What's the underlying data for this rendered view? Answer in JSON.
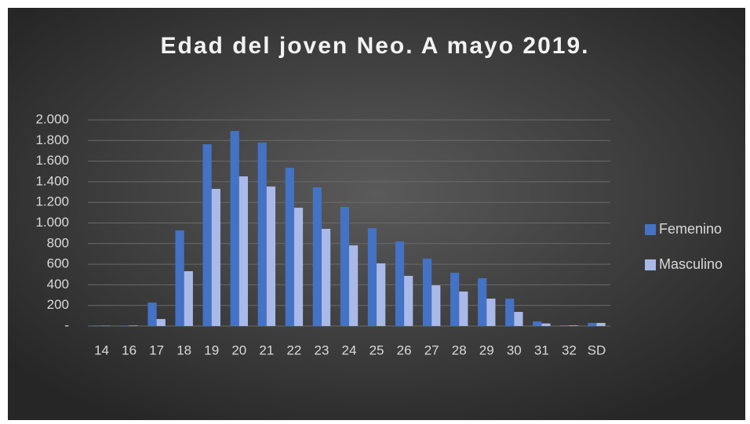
{
  "chart_data": {
    "type": "bar",
    "title": "Edad del joven Neo. A mayo 2019.",
    "categories": [
      "14",
      "16",
      "17",
      "18",
      "19",
      "20",
      "21",
      "22",
      "23",
      "24",
      "25",
      "26",
      "27",
      "28",
      "29",
      "30",
      "31",
      "32",
      "SD"
    ],
    "series": [
      {
        "name": "Femenino",
        "color": "#4472c4",
        "values": [
          5,
          5,
          228,
          928,
          1764,
          1893,
          1780,
          1536,
          1346,
          1156,
          950,
          821,
          654,
          517,
          464,
          266,
          45,
          8,
          30
        ]
      },
      {
        "name": "Masculino",
        "color": "#a9b9e8",
        "values": [
          3,
          5,
          68,
          532,
          1331,
          1452,
          1354,
          1148,
          943,
          783,
          608,
          487,
          395,
          335,
          266,
          137,
          25,
          6,
          30
        ]
      }
    ],
    "ylim": [
      0,
      2000
    ],
    "yticks": [
      {
        "value": 0,
        "label": "-"
      },
      200,
      400,
      600,
      800,
      {
        "value": 1000,
        "label": "1.000"
      },
      {
        "value": 1200,
        "label": "1.200"
      },
      {
        "value": 1400,
        "label": "1.400"
      },
      {
        "value": 1600,
        "label": "1.600"
      },
      {
        "value": 1800,
        "label": "1.800"
      },
      {
        "value": 2000,
        "label": "2.000"
      }
    ],
    "grid": true,
    "legend": "right"
  }
}
